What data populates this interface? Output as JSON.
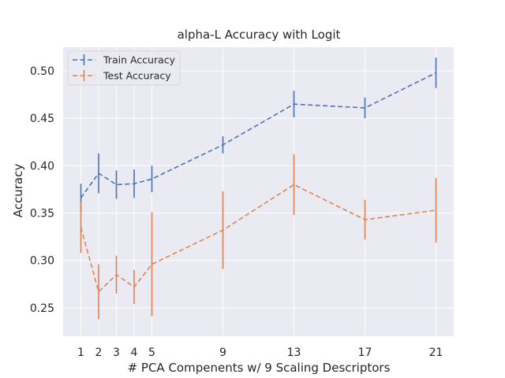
{
  "chart_data": {
    "type": "line",
    "title": "alpha-L Accuracy with Logit",
    "xlabel": "# PCA Compenents w/ 9 Scaling Descriptors",
    "ylabel": "Accuracy",
    "x": [
      1,
      2,
      3,
      4,
      5,
      9,
      13,
      17,
      21
    ],
    "xticks": [
      "1",
      "2",
      "3",
      "4",
      "5",
      "9",
      "13",
      "17",
      "21"
    ],
    "xlim": [
      0,
      22
    ],
    "ylim": [
      0.22,
      0.525
    ],
    "yticks": [
      "0.25",
      "0.30",
      "0.35",
      "0.40",
      "0.45",
      "0.50"
    ],
    "ytick_values": [
      0.25,
      0.3,
      0.35,
      0.4,
      0.45,
      0.5
    ],
    "grid": true,
    "legend_position": "top-left",
    "series": [
      {
        "name": "Train Accuracy",
        "color": "#4c72b0",
        "values": [
          0.366,
          0.392,
          0.38,
          0.381,
          0.386,
          0.422,
          0.465,
          0.461,
          0.498
        ],
        "errors": [
          0.015,
          0.021,
          0.015,
          0.015,
          0.014,
          0.009,
          0.014,
          0.011,
          0.016
        ]
      },
      {
        "name": "Test Accuracy",
        "color": "#dd8452",
        "values": [
          0.335,
          0.267,
          0.285,
          0.272,
          0.296,
          0.332,
          0.38,
          0.343,
          0.353
        ],
        "errors": [
          0.027,
          0.029,
          0.02,
          0.018,
          0.055,
          0.041,
          0.032,
          0.021,
          0.034
        ]
      }
    ],
    "background_color": "#eaeaf2",
    "grid_color": "#ffffff"
  }
}
